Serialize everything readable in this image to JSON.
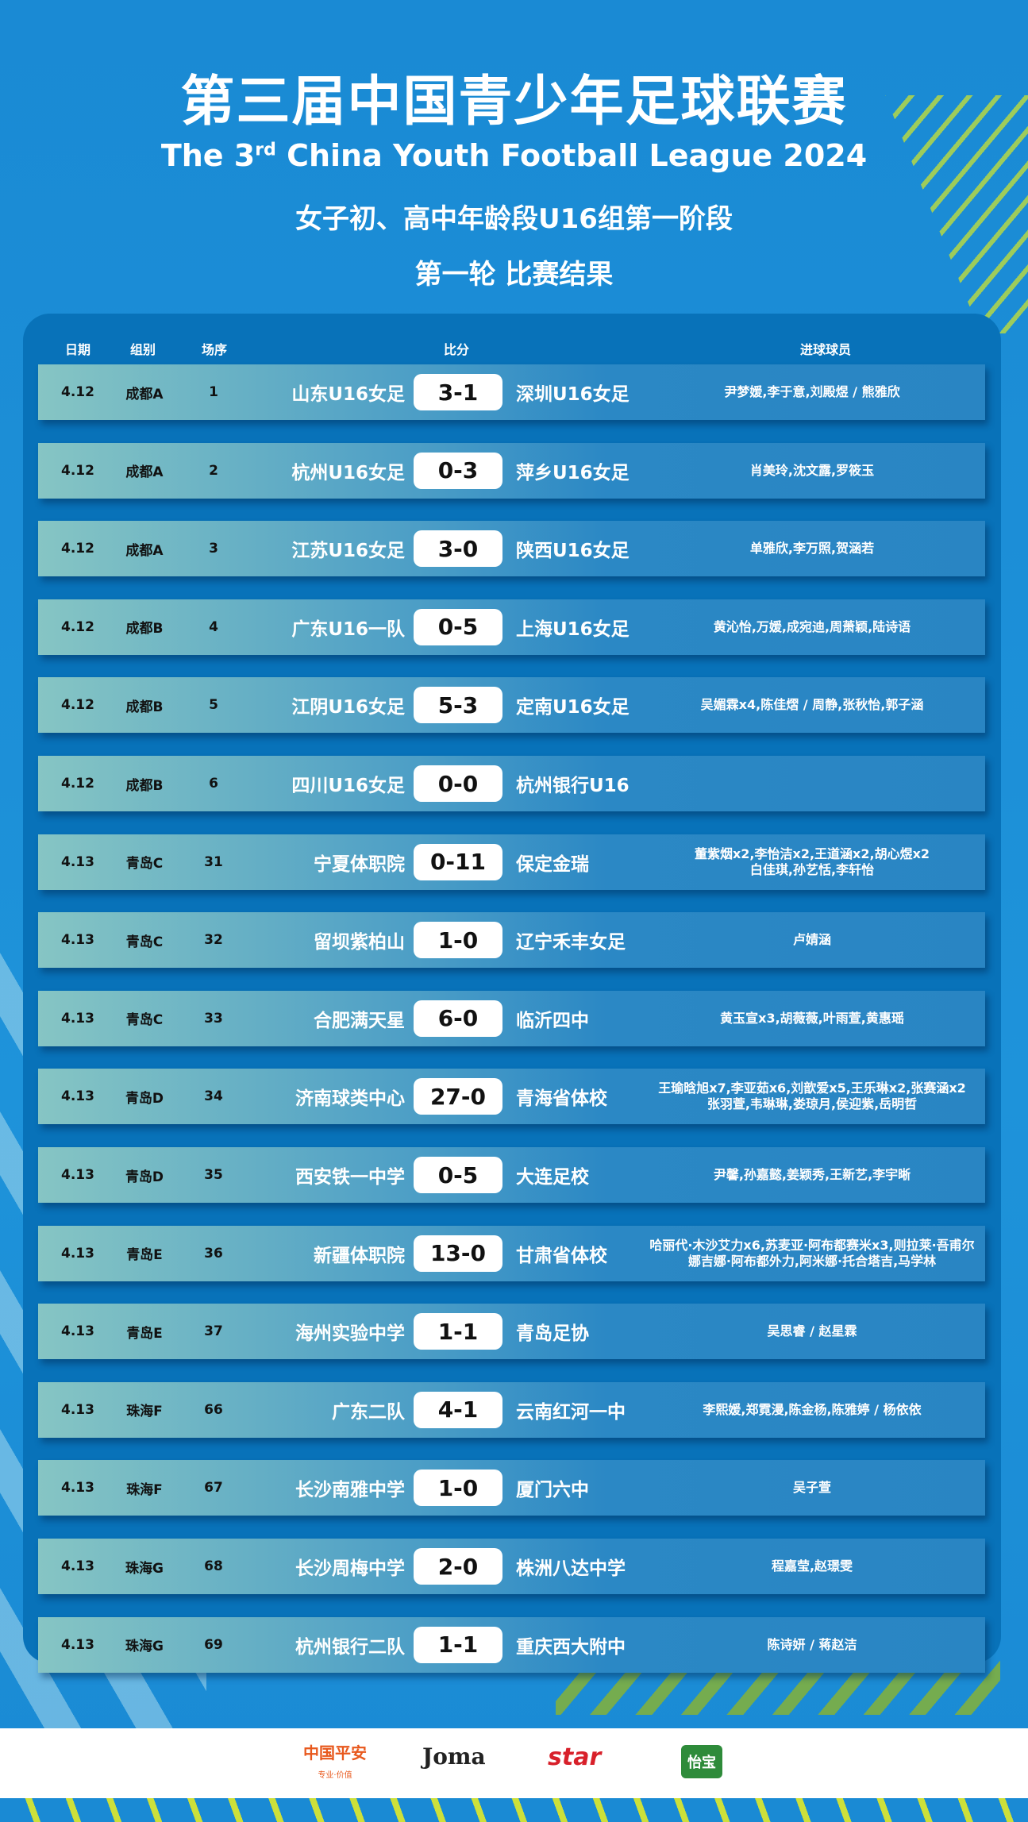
{
  "header": {
    "title": "第三届中国青少年足球联赛",
    "subtitle_pre": "The 3",
    "subtitle_sup": "rd",
    "subtitle_post": " China Youth Football League 2024",
    "stage": "女子初、高中年龄段U16组第一阶段",
    "round": "第一轮  比赛结果"
  },
  "columns": {
    "date": "日期",
    "group": "组别",
    "seq": "场序",
    "score": "比分",
    "scorers": "进球球员"
  },
  "matches": [
    {
      "date": "4.12",
      "group": "成都A",
      "seq": "1",
      "home": "山东U16女足",
      "score": "3-1",
      "away": "深圳U16女足",
      "scorers": [
        "尹梦媛,李于意,刘殿煜 / 熊雅欣"
      ]
    },
    {
      "date": "4.12",
      "group": "成都A",
      "seq": "2",
      "home": "杭州U16女足",
      "score": "0-3",
      "away": "萍乡U16女足",
      "scorers": [
        "肖美玲,沈文露,罗筱玉"
      ]
    },
    {
      "date": "4.12",
      "group": "成都A",
      "seq": "3",
      "home": "江苏U16女足",
      "score": "3-0",
      "away": "陕西U16女足",
      "scorers": [
        "单雅欣,李万照,贺涵若"
      ]
    },
    {
      "date": "4.12",
      "group": "成都B",
      "seq": "4",
      "home": "广东U16一队",
      "score": "0-5",
      "away": "上海U16女足",
      "scorers": [
        "黄沁怡,万媛,成宛迪,周萧颖,陆诗语"
      ]
    },
    {
      "date": "4.12",
      "group": "成都B",
      "seq": "5",
      "home": "江阴U16女足",
      "score": "5-3",
      "away": "定南U16女足",
      "scorers": [
        "吴媚霖x4,陈佳熠 / 周静,张秋怡,郭子涵"
      ]
    },
    {
      "date": "4.12",
      "group": "成都B",
      "seq": "6",
      "home": "四川U16女足",
      "score": "0-0",
      "away": "杭州银行U16",
      "scorers": []
    },
    {
      "date": "4.13",
      "group": "青岛C",
      "seq": "31",
      "home": "宁夏体职院",
      "score": "0-11",
      "away": "保定金瑞",
      "scorers": [
        "董紫烟x2,李怡洁x2,王道涵x2,胡心煜x2",
        "白佳琪,孙艺恬,李轩怡"
      ]
    },
    {
      "date": "4.13",
      "group": "青岛C",
      "seq": "32",
      "home": "留坝紫柏山",
      "score": "1-0",
      "away": "辽宁禾丰女足",
      "scorers": [
        "卢婧涵"
      ]
    },
    {
      "date": "4.13",
      "group": "青岛C",
      "seq": "33",
      "home": "合肥满天星",
      "score": "6-0",
      "away": "临沂四中",
      "scorers": [
        "黄玉宣x3,胡薇薇,叶雨萱,黄惠瑶"
      ]
    },
    {
      "date": "4.13",
      "group": "青岛D",
      "seq": "34",
      "home": "济南球类中心",
      "score": "27-0",
      "away": "青海省体校",
      "scorers": [
        "王瑜晗旭x7,李亚茹x6,刘歆爱x5,王乐琳x2,张赛涵x2",
        "张羽萱,韦琳琳,娄琼月,侯迎紫,岳明哲"
      ]
    },
    {
      "date": "4.13",
      "group": "青岛D",
      "seq": "35",
      "home": "西安铁一中学",
      "score": "0-5",
      "away": "大连足校",
      "scorers": [
        "尹馨,孙嘉懿,姜颖秀,王新艺,李宇晰"
      ]
    },
    {
      "date": "4.13",
      "group": "青岛E",
      "seq": "36",
      "home": "新疆体职院",
      "score": "13-0",
      "away": "甘肃省体校",
      "scorers": [
        "哈丽代·木沙艾力x6,苏麦亚·阿布都赛米x3,则拉莱·吾甫尔",
        "娜吉娜·阿布都外力,阿米娜·托合塔吉,马学林"
      ]
    },
    {
      "date": "4.13",
      "group": "青岛E",
      "seq": "37",
      "home": "海州实验中学",
      "score": "1-1",
      "away": "青岛足协",
      "scorers": [
        "吴思睿 / 赵星霖"
      ]
    },
    {
      "date": "4.13",
      "group": "珠海F",
      "seq": "66",
      "home": "广东二队",
      "score": "4-1",
      "away": "云南红河一中",
      "scorers": [
        "李熙媛,郑霓漫,陈金杨,陈雅婷 / 杨依依"
      ]
    },
    {
      "date": "4.13",
      "group": "珠海F",
      "seq": "67",
      "home": "长沙南雅中学",
      "score": "1-0",
      "away": "厦门六中",
      "scorers": [
        "吴子萱"
      ]
    },
    {
      "date": "4.13",
      "group": "珠海G",
      "seq": "68",
      "home": "长沙周梅中学",
      "score": "2-0",
      "away": "株洲八达中学",
      "scorers": [
        "程嘉莹,赵璟雯"
      ]
    },
    {
      "date": "4.13",
      "group": "珠海G",
      "seq": "69",
      "home": "杭州银行二队",
      "score": "1-1",
      "away": "重庆西大附中",
      "scorers": [
        "陈诗妍 / 蒋赵洁"
      ]
    }
  ],
  "sponsors": {
    "pingan": "中国平安",
    "pingan_tag": "专业·价值",
    "joma": "Joma",
    "star": "star",
    "yibao": "怡宝"
  },
  "colors": {
    "background": "#1a8ad4",
    "panel": "#0872b9",
    "accent_green": "#cde03a",
    "pingan": "#e8581c",
    "star": "#d8202a",
    "yibao": "#2e8b3a"
  }
}
